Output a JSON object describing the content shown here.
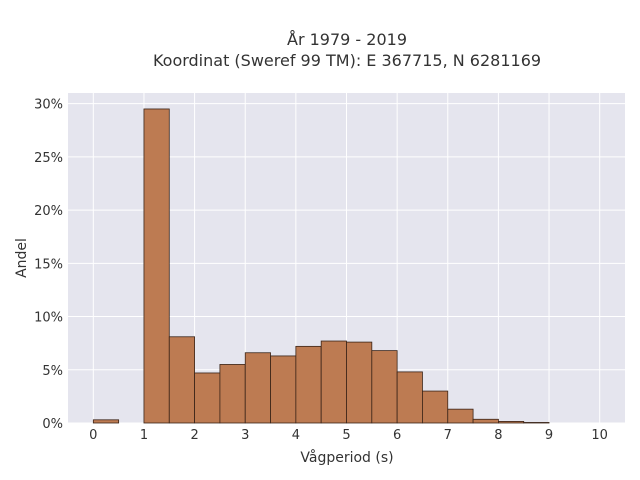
{
  "chart_data": {
    "type": "bar",
    "title_line1": "År 1979 - 2019",
    "title_line2": "Koordinat (Sweref 99 TM): E 367715, N 6281169",
    "xlabel": "Vågperiod (s)",
    "ylabel": "Andel",
    "xlim": [
      -0.5,
      10.5
    ],
    "ylim": [
      0,
      31
    ],
    "x_ticks": [
      0,
      1,
      2,
      3,
      4,
      5,
      6,
      7,
      8,
      9,
      10
    ],
    "y_ticks": [
      0,
      5,
      10,
      15,
      20,
      25,
      30
    ],
    "y_tick_labels": [
      "0%",
      "5%",
      "10%",
      "15%",
      "20%",
      "25%",
      "30%"
    ],
    "bin_width": 0.5,
    "bins": [
      {
        "x0": 0.0,
        "value": 0.3
      },
      {
        "x0": 1.0,
        "value": 29.5
      },
      {
        "x0": 1.5,
        "value": 8.1
      },
      {
        "x0": 2.0,
        "value": 4.7
      },
      {
        "x0": 2.5,
        "value": 5.5
      },
      {
        "x0": 3.0,
        "value": 6.6
      },
      {
        "x0": 3.5,
        "value": 6.3
      },
      {
        "x0": 4.0,
        "value": 7.2
      },
      {
        "x0": 4.5,
        "value": 7.7
      },
      {
        "x0": 5.0,
        "value": 7.6
      },
      {
        "x0": 5.5,
        "value": 6.8
      },
      {
        "x0": 6.0,
        "value": 4.8
      },
      {
        "x0": 6.5,
        "value": 3.0
      },
      {
        "x0": 7.0,
        "value": 1.3
      },
      {
        "x0": 7.5,
        "value": 0.35
      },
      {
        "x0": 8.0,
        "value": 0.15
      },
      {
        "x0": 8.5,
        "value": 0.05
      }
    ],
    "grid": true,
    "bar_color": "#BD7B52",
    "bar_edge_color": "#3a2418",
    "plot_bg": "#E5E5EE",
    "grid_color": "#ffffff"
  }
}
